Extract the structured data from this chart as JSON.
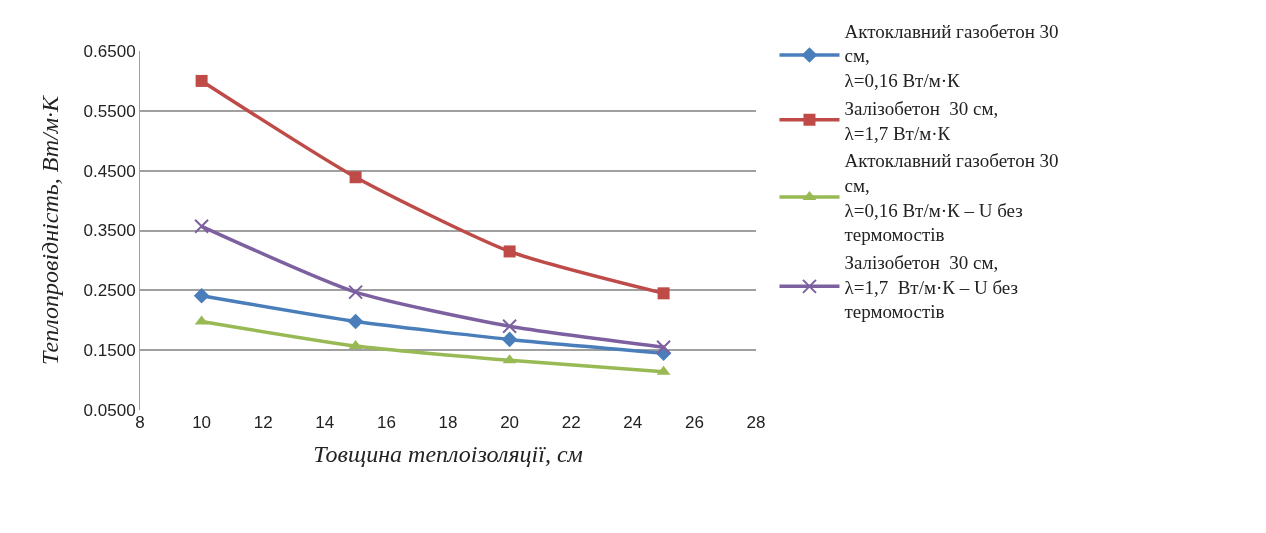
{
  "chart_data": {
    "type": "line",
    "xlabel": "Товщина теплоізоляції, см",
    "ylabel": "Теплопровідність, Вт/м·К",
    "x": [
      10,
      15,
      20,
      25
    ],
    "series": [
      {
        "name": "Актоклавний газобетон 30\nсм,\nλ=0,16 Вт/м·К",
        "color": "#4a7ebb",
        "marker": "diamond",
        "values": [
          0.241,
          0.198,
          0.168,
          0.145
        ]
      },
      {
        "name": "Залізобетон  30 см,\nλ=1,7 Вт/м·К",
        "color": "#be4b48",
        "marker": "square",
        "values": [
          0.6,
          0.439,
          0.315,
          0.245
        ]
      },
      {
        "name": "Актоклавний газобетон 30\nсм,\nλ=0,16 Вт/м·К – U без\nтермомостів",
        "color": "#98b954",
        "marker": "triangle",
        "values": [
          0.198,
          0.157,
          0.133,
          0.114
        ]
      },
      {
        "name": "Залізобетон  30 см,\nλ=1,7  Вт/м·К – U без\nтермомостів",
        "color": "#7d60a0",
        "marker": "cross",
        "values": [
          0.357,
          0.247,
          0.19,
          0.155
        ]
      }
    ],
    "xlim": [
      8,
      28
    ],
    "xticks": [
      8,
      10,
      12,
      14,
      16,
      18,
      20,
      22,
      24,
      26,
      28
    ],
    "ylim": [
      0.05,
      0.65
    ],
    "yticks": [
      {
        "value": 0.05,
        "label": "0.0500"
      },
      {
        "value": 0.15,
        "label": "0.1500"
      },
      {
        "value": 0.25,
        "label": "0.2500"
      },
      {
        "value": 0.35,
        "label": "0.3500"
      },
      {
        "value": 0.45,
        "label": "0.4500"
      },
      {
        "value": 0.55,
        "label": "0.5500"
      },
      {
        "value": 0.65,
        "label": "0.6500"
      }
    ],
    "grid": "y",
    "legend": "right",
    "line_style": "solid"
  }
}
